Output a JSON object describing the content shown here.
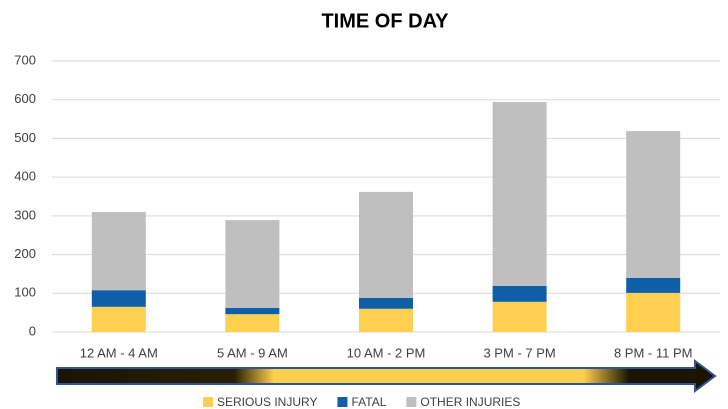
{
  "chart_data": {
    "type": "stacked_bar",
    "title": "TIME OF DAY",
    "categories": [
      "12 AM - 4 AM",
      "5 AM - 9 AM",
      "10 AM - 2 PM",
      "3 PM - 7 PM",
      "8 PM - 11 PM"
    ],
    "series": [
      {
        "name": "SERIOUS INJURY",
        "color": "#ffd04f",
        "values": [
          65,
          46,
          60,
          78,
          101
        ]
      },
      {
        "name": "FATAL",
        "color": "#0e5fa8",
        "values": [
          43,
          16,
          28,
          41,
          39
        ]
      },
      {
        "name": "OTHER INJURIES",
        "color": "#bfbfbf",
        "values": [
          202,
          227,
          274,
          475,
          379
        ]
      }
    ],
    "ylim": [
      0,
      700
    ],
    "yticks": [
      0,
      100,
      200,
      300,
      400,
      500,
      600,
      700
    ],
    "grid": true
  }
}
